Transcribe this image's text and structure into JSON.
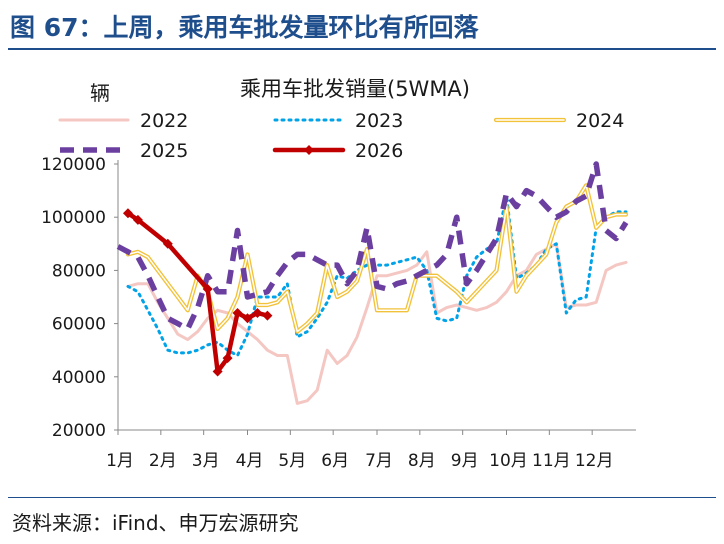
{
  "figure_title": "图 67：上周，乘用车批发量环比有所回落",
  "source_text": "资料来源：iFind、申万宏源研究",
  "chart_data": {
    "type": "line",
    "title": "乘用车批发销量(5WMA)",
    "ylabel": "辆",
    "xlabel": "",
    "ylim": [
      20000,
      120000
    ],
    "yticks": [
      20000,
      40000,
      60000,
      80000,
      100000,
      120000
    ],
    "xlim": [
      0,
      52
    ],
    "xtick_positions": [
      0,
      4.3,
      8.6,
      13,
      17.3,
      21.6,
      26,
      30.3,
      34.6,
      39,
      43.3,
      47.6
    ],
    "xtick_labels": [
      "1月",
      "2月",
      "3月",
      "4月",
      "5月",
      "6月",
      "7月",
      "8月",
      "9月",
      "10月",
      "11月",
      "12月"
    ],
    "grid": false,
    "legend_position": "top",
    "series": [
      {
        "name": "2022",
        "color": "#f4c7c3",
        "style": "solid",
        "x": [
          1,
          2,
          3,
          4,
          5,
          6,
          7,
          8,
          9,
          10,
          11,
          12,
          13,
          14,
          15,
          16,
          17,
          18,
          19,
          20,
          21,
          22,
          23,
          24,
          25,
          26,
          27,
          28,
          29,
          30,
          31,
          32,
          33,
          34,
          35,
          36,
          37,
          38,
          39,
          40,
          41,
          42,
          43,
          44,
          45,
          46,
          47,
          48,
          49,
          50,
          51
        ],
        "values": [
          74000,
          75000,
          75000,
          68000,
          62000,
          56000,
          54000,
          57000,
          62000,
          65000,
          64000,
          60000,
          57000,
          54000,
          50000,
          48000,
          48000,
          30000,
          31000,
          35000,
          50000,
          45000,
          48000,
          55000,
          66000,
          78000,
          78000,
          79000,
          80000,
          82000,
          87000,
          64000,
          66000,
          67000,
          66000,
          65000,
          66000,
          68000,
          72000,
          78000,
          80000,
          86000,
          88000,
          90000,
          66000,
          67000,
          67000,
          68000,
          80000,
          82000,
          83000
        ]
      },
      {
        "name": "2023",
        "color": "#00a2e8",
        "style": "dotted",
        "x": [
          1,
          2,
          3,
          4,
          5,
          6,
          7,
          8,
          9,
          10,
          11,
          12,
          13,
          14,
          15,
          16,
          17,
          18,
          19,
          20,
          21,
          22,
          23,
          24,
          25,
          26,
          27,
          28,
          29,
          30,
          31,
          32,
          33,
          34,
          35,
          36,
          37,
          38,
          39,
          40,
          41,
          42,
          43,
          44,
          45,
          46,
          47,
          48,
          49,
          50,
          51
        ],
        "values": [
          74000,
          72000,
          65000,
          58000,
          50000,
          49000,
          49000,
          50000,
          52000,
          53000,
          50000,
          48000,
          56000,
          70000,
          70000,
          70000,
          75000,
          55000,
          57000,
          62000,
          68000,
          78000,
          77000,
          80000,
          82000,
          82000,
          82000,
          83000,
          84000,
          85000,
          80000,
          62000,
          61000,
          62000,
          78000,
          85000,
          88000,
          90000,
          108000,
          77000,
          79000,
          82000,
          88000,
          90000,
          64000,
          69000,
          70000,
          96000,
          100000,
          102000,
          102000
        ]
      },
      {
        "name": "2024",
        "color": "#f2c23a",
        "style": "double",
        "x": [
          1,
          2,
          3,
          4,
          5,
          6,
          7,
          8,
          9,
          10,
          11,
          12,
          13,
          14,
          15,
          16,
          17,
          18,
          19,
          20,
          21,
          22,
          23,
          24,
          25,
          26,
          27,
          28,
          29,
          30,
          31,
          32,
          33,
          34,
          35,
          36,
          37,
          38,
          39,
          40,
          41,
          42,
          43,
          44,
          45,
          46,
          47,
          48,
          49,
          50,
          51
        ],
        "values": [
          86000,
          87000,
          85000,
          80000,
          75000,
          70000,
          65000,
          78000,
          72000,
          58000,
          62000,
          70000,
          86000,
          67000,
          67000,
          68000,
          72000,
          57000,
          60000,
          64000,
          82000,
          70000,
          72000,
          76000,
          88000,
          65000,
          65000,
          65000,
          65000,
          78000,
          78000,
          78000,
          75000,
          72000,
          68000,
          72000,
          76000,
          80000,
          104000,
          72000,
          78000,
          82000,
          86000,
          98000,
          104000,
          106000,
          112000,
          96000,
          100000,
          101000,
          101000
        ]
      },
      {
        "name": "2025",
        "color": "#6b3fa0",
        "style": "dashed",
        "x": [
          0,
          1,
          2,
          3,
          4,
          5,
          6,
          7,
          8,
          9,
          10,
          11,
          12,
          13,
          14,
          15,
          16,
          17,
          18,
          19,
          20,
          21,
          22,
          23,
          24,
          25,
          26,
          27,
          28,
          29,
          30,
          31,
          32,
          33,
          34,
          35,
          36,
          37,
          38,
          39,
          40,
          41,
          42,
          43,
          44,
          45,
          46,
          47,
          48,
          49,
          50,
          51
        ],
        "values": [
          89000,
          87000,
          85000,
          78000,
          70000,
          62000,
          60000,
          58000,
          66000,
          78000,
          72000,
          72000,
          95000,
          70000,
          71000,
          72000,
          78000,
          83000,
          86000,
          86000,
          84000,
          82000,
          82000,
          75000,
          80000,
          96000,
          74000,
          73000,
          75000,
          76000,
          78000,
          80000,
          82000,
          86000,
          100000,
          75000,
          80000,
          86000,
          92000,
          109000,
          104000,
          110000,
          108000,
          104000,
          100000,
          102000,
          106000,
          108000,
          120000,
          95000,
          92000,
          98000
        ]
      },
      {
        "name": "2026",
        "color": "#c00000",
        "style": "solid-marker",
        "x": [
          1,
          2,
          5,
          9,
          10,
          11,
          12,
          13,
          14,
          15
        ],
        "values": [
          101500,
          99000,
          90000,
          73000,
          42000,
          47000,
          64000,
          62000,
          64000,
          63000
        ]
      }
    ]
  }
}
